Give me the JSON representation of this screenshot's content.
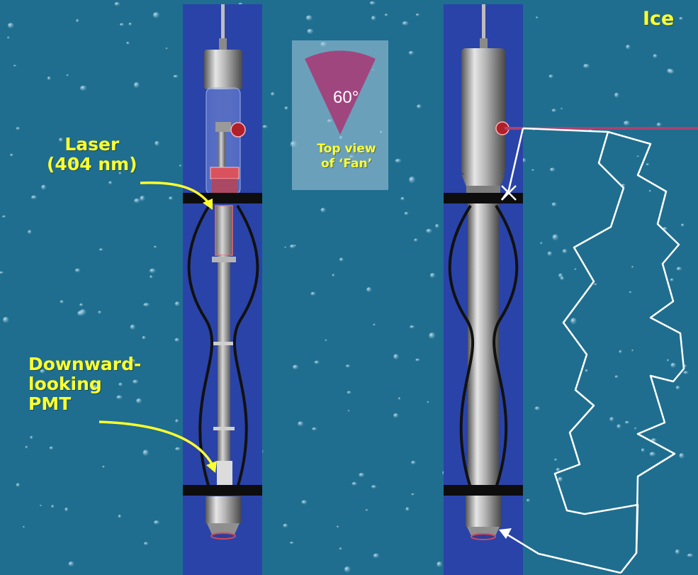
{
  "labels": {
    "ice": "Ice",
    "laser_line1": "Laser",
    "laser_line2": "(404 nm)",
    "pmt_line1": "Downward-",
    "pmt_line2": "looking",
    "pmt_line3": "PMT",
    "fan_angle": "60°",
    "fan_line1": "Top view",
    "fan_line2": "of ‘Fan’"
  },
  "colors": {
    "ice": "#1f6e8f",
    "borehole": "#2a43a8",
    "label_text": "#ffff2e",
    "fan": "#a0467f",
    "photon_path": "#ffffff",
    "laser_beam": "#b0406e"
  }
}
